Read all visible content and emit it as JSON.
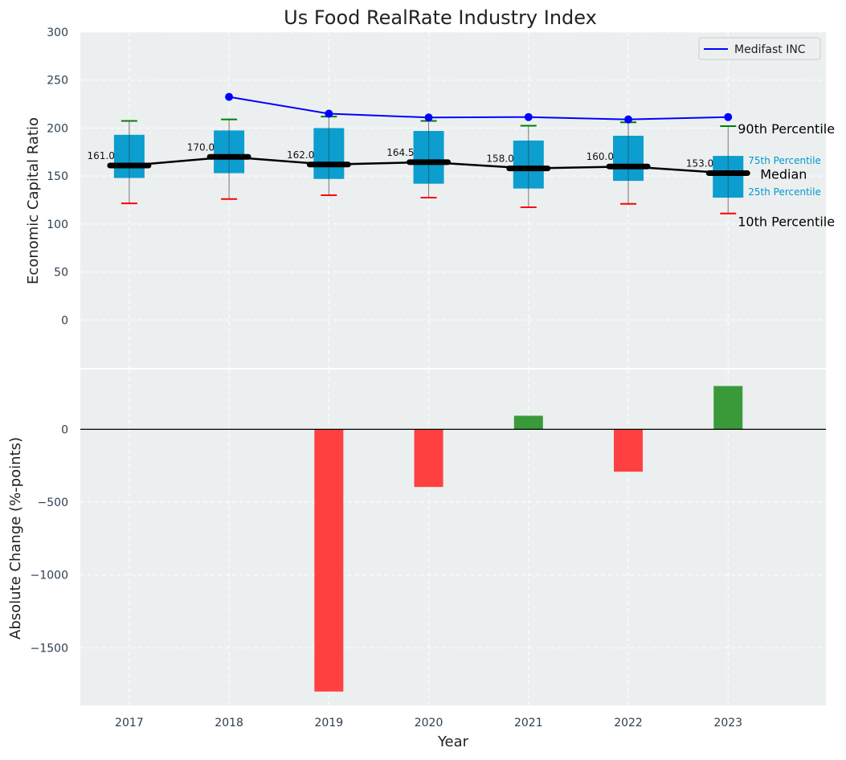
{
  "chart_data": [
    {
      "type": "box",
      "title": "Us Food RealRate Industry Index",
      "ylabel": "Economic Capital Ratio",
      "ylim": [
        -50,
        300
      ],
      "yticks": [
        "0",
        "50",
        "100",
        "150",
        "200",
        "250",
        "300"
      ],
      "ytick_values": [
        0,
        50,
        100,
        150,
        200,
        250,
        300
      ],
      "categories": [
        "2017",
        "2018",
        "2019",
        "2020",
        "2021",
        "2022",
        "2023"
      ],
      "p10": [
        121.5,
        126,
        130,
        127.5,
        117.5,
        121,
        111
      ],
      "p25": [
        148,
        153,
        147,
        142,
        137,
        145,
        127.5
      ],
      "median": [
        161,
        170,
        162,
        164.5,
        158,
        160,
        153
      ],
      "p75": [
        193,
        197.5,
        200,
        197,
        187,
        192,
        171
      ],
      "p90": [
        207.5,
        209,
        212,
        207.5,
        202.5,
        206,
        202
      ],
      "median_labels": [
        "161.0",
        "170.0",
        "162.0",
        "164.5",
        "158.0",
        "160.0",
        "153.0"
      ],
      "series": [
        {
          "name": "Medifast INC",
          "x": [
            "2018",
            "2019",
            "2020",
            "2021",
            "2022",
            "2023"
          ],
          "values": [
            232.5,
            215,
            211,
            211.5,
            209,
            211.5
          ],
          "color": "#0000ff"
        }
      ],
      "legend": "top-right",
      "annotations": {
        "p90": "90th Percentile",
        "p75": "75th Percentile",
        "median": "Median",
        "p25": "25th Percentile",
        "p10": "10th Percentile"
      },
      "colors": {
        "box": "#0099cc",
        "median": "#000000",
        "p90_cap": "#008000",
        "p10_cap": "#ff0000",
        "background": "#eceff0"
      }
    },
    {
      "type": "bar",
      "xlabel": "Year",
      "ylabel": "Absolute Change (%-points)",
      "ylim": [
        -1895,
        410
      ],
      "yticks": [
        "0",
        "−500",
        "−1000",
        "−1500"
      ],
      "ytick_values": [
        0,
        -500,
        -1000,
        -1500
      ],
      "categories": [
        "2017",
        "2018",
        "2019",
        "2020",
        "2021",
        "2022",
        "2023"
      ],
      "values": [
        null,
        null,
        -1800,
        -396,
        93,
        -291,
        297
      ],
      "colors": {
        "positive": "#3a9a3a",
        "negative": "#ff4040"
      }
    }
  ]
}
